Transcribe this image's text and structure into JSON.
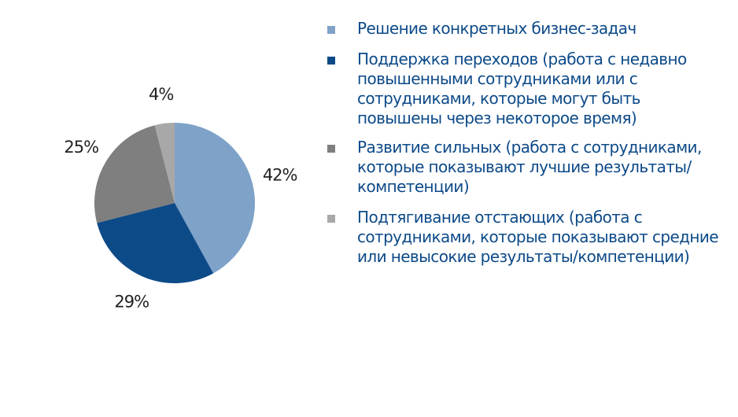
{
  "chart_data": {
    "type": "pie",
    "categories": [
      "Решение конкретных бизнес-задач",
      "Поддержка переходов (работа с недавно повышенными сотрудниками или с сотрудниками, которые могут быть повышены через некоторое время)",
      "Развитие сильных (работа с сотрудниками, которые показывают лучшие результаты/компетенции)",
      "Подтягивание отстающих (работа с сотрудниками, которые показывают средние или невысокие результаты/компетенции)"
    ],
    "values": [
      42,
      29,
      25,
      4
    ],
    "value_labels": [
      "42%",
      "29%",
      "25%",
      "4%"
    ],
    "colors": [
      "#7ea2c8",
      "#0d4a88",
      "#7f7f7f",
      "#a8a8a8"
    ]
  }
}
